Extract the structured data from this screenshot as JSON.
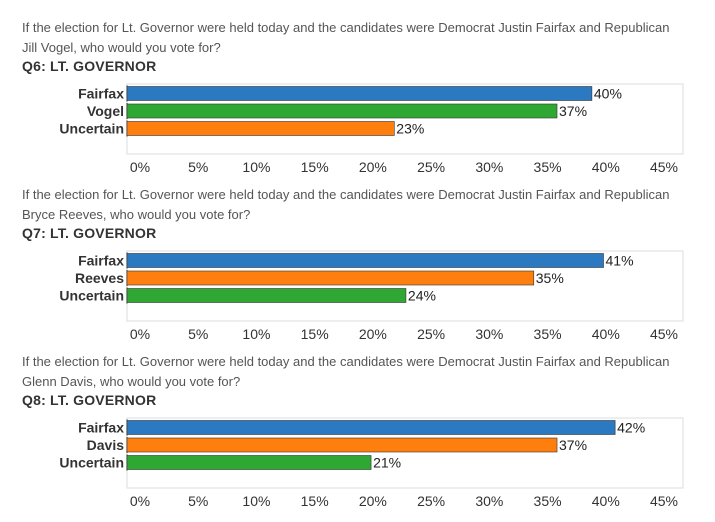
{
  "colors": {
    "blue": "#2b79c0",
    "green": "#2fa833",
    "orange": "#ff7f0e"
  },
  "questions": [
    {
      "text": "If the election for Lt. Governor were held today and the candidates were Democrat Justin Fairfax and Republican Jill Vogel, who would you vote for?",
      "title": "Q6: LT. GOVERNOR"
    },
    {
      "text": "If the election for Lt. Governor were held today and the candidates were Democrat Justin Fairfax and Republican Bryce Reeves, who would you vote for?",
      "title": "Q7: LT. GOVERNOR"
    },
    {
      "text": "If the election for Lt. Governor were held today and the candidates were Democrat Justin Fairfax and Republican Glenn Davis, who would you vote for?",
      "title": "Q8: LT. GOVERNOR"
    }
  ],
  "chart_data": [
    {
      "type": "bar",
      "orientation": "horizontal",
      "title": "Q6: LT. GOVERNOR",
      "categories": [
        "Fairfax",
        "Vogel",
        "Uncertain"
      ],
      "values": [
        40,
        37,
        23
      ],
      "value_labels": [
        "40%",
        "37%",
        "23%"
      ],
      "bar_colors": [
        "#2b79c0",
        "#2fa833",
        "#ff7f0e"
      ],
      "x_ticks": [
        "0%",
        "5%",
        "10%",
        "15%",
        "20%",
        "25%",
        "30%",
        "35%",
        "40%",
        "45%"
      ],
      "xlim": [
        0,
        45
      ],
      "grid": false,
      "legend": false
    },
    {
      "type": "bar",
      "orientation": "horizontal",
      "title": "Q7: LT. GOVERNOR",
      "categories": [
        "Fairfax",
        "Reeves",
        "Uncertain"
      ],
      "values": [
        41,
        35,
        24
      ],
      "value_labels": [
        "41%",
        "35%",
        "24%"
      ],
      "bar_colors": [
        "#2b79c0",
        "#ff7f0e",
        "#2fa833"
      ],
      "x_ticks": [
        "0%",
        "5%",
        "10%",
        "15%",
        "20%",
        "25%",
        "30%",
        "35%",
        "40%",
        "45%"
      ],
      "xlim": [
        0,
        45
      ],
      "grid": false,
      "legend": false
    },
    {
      "type": "bar",
      "orientation": "horizontal",
      "title": "Q8: LT. GOVERNOR",
      "categories": [
        "Fairfax",
        "Davis",
        "Uncertain"
      ],
      "values": [
        42,
        37,
        21
      ],
      "value_labels": [
        "42%",
        "37%",
        "21%"
      ],
      "bar_colors": [
        "#2b79c0",
        "#ff7f0e",
        "#2fa833"
      ],
      "x_ticks": [
        "0%",
        "5%",
        "10%",
        "15%",
        "20%",
        "25%",
        "30%",
        "35%",
        "40%",
        "45%"
      ],
      "xlim": [
        0,
        45
      ],
      "grid": false,
      "legend": false
    }
  ]
}
